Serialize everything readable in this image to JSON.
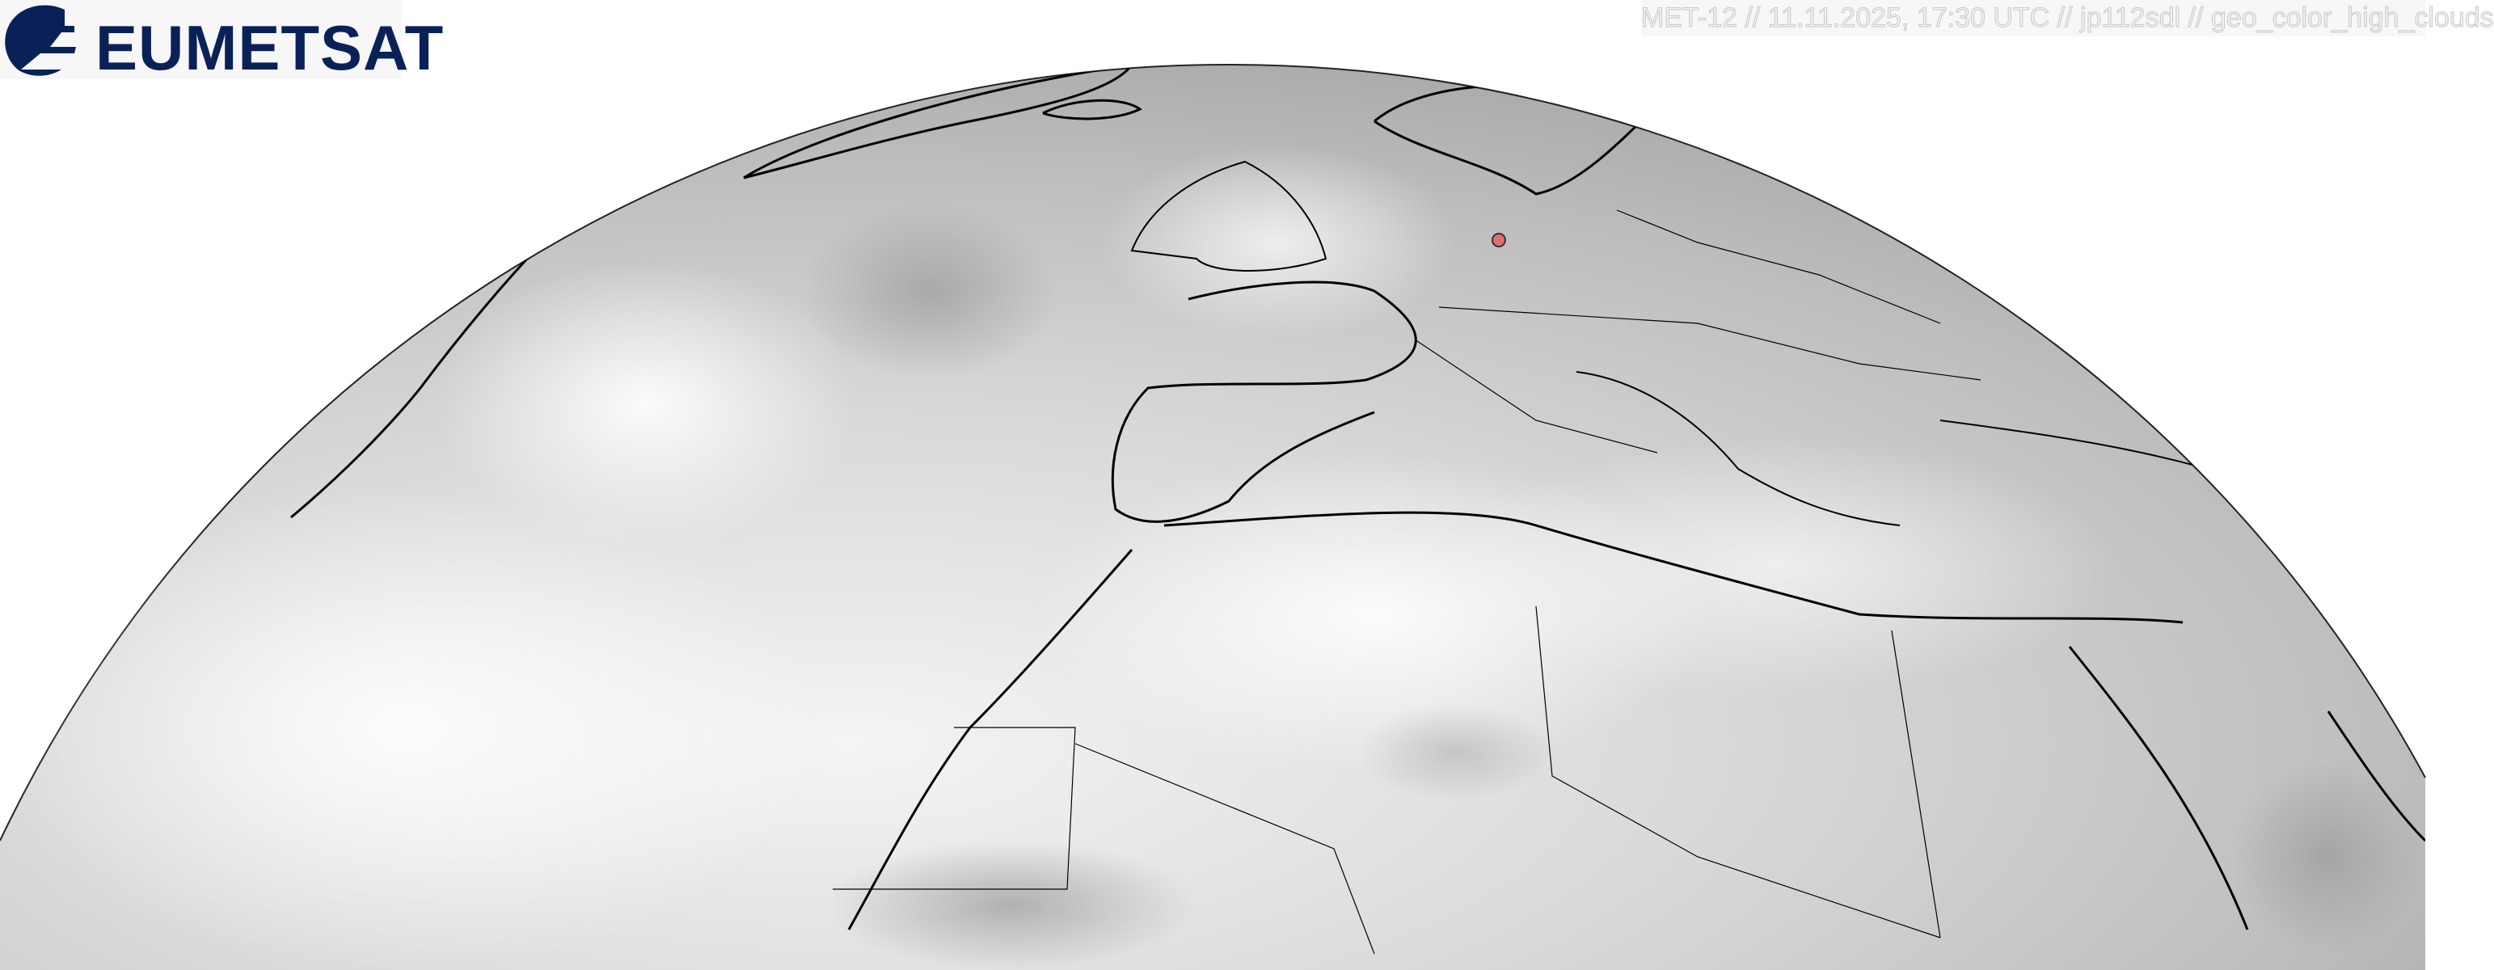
{
  "logo": {
    "text": "EUMETSAT",
    "color": "#0a2158"
  },
  "caption": "MET-12 // 11.11.2025, 17:30 UTC // jp112sdl // geo_color_high_clouds",
  "map": {
    "projection": "geostationary full-disk (northern section)",
    "product": "geo_color_high_clouds",
    "land_outline_color": "#000000",
    "marker": {
      "type": "location-dot",
      "color": "#e07070"
    }
  }
}
